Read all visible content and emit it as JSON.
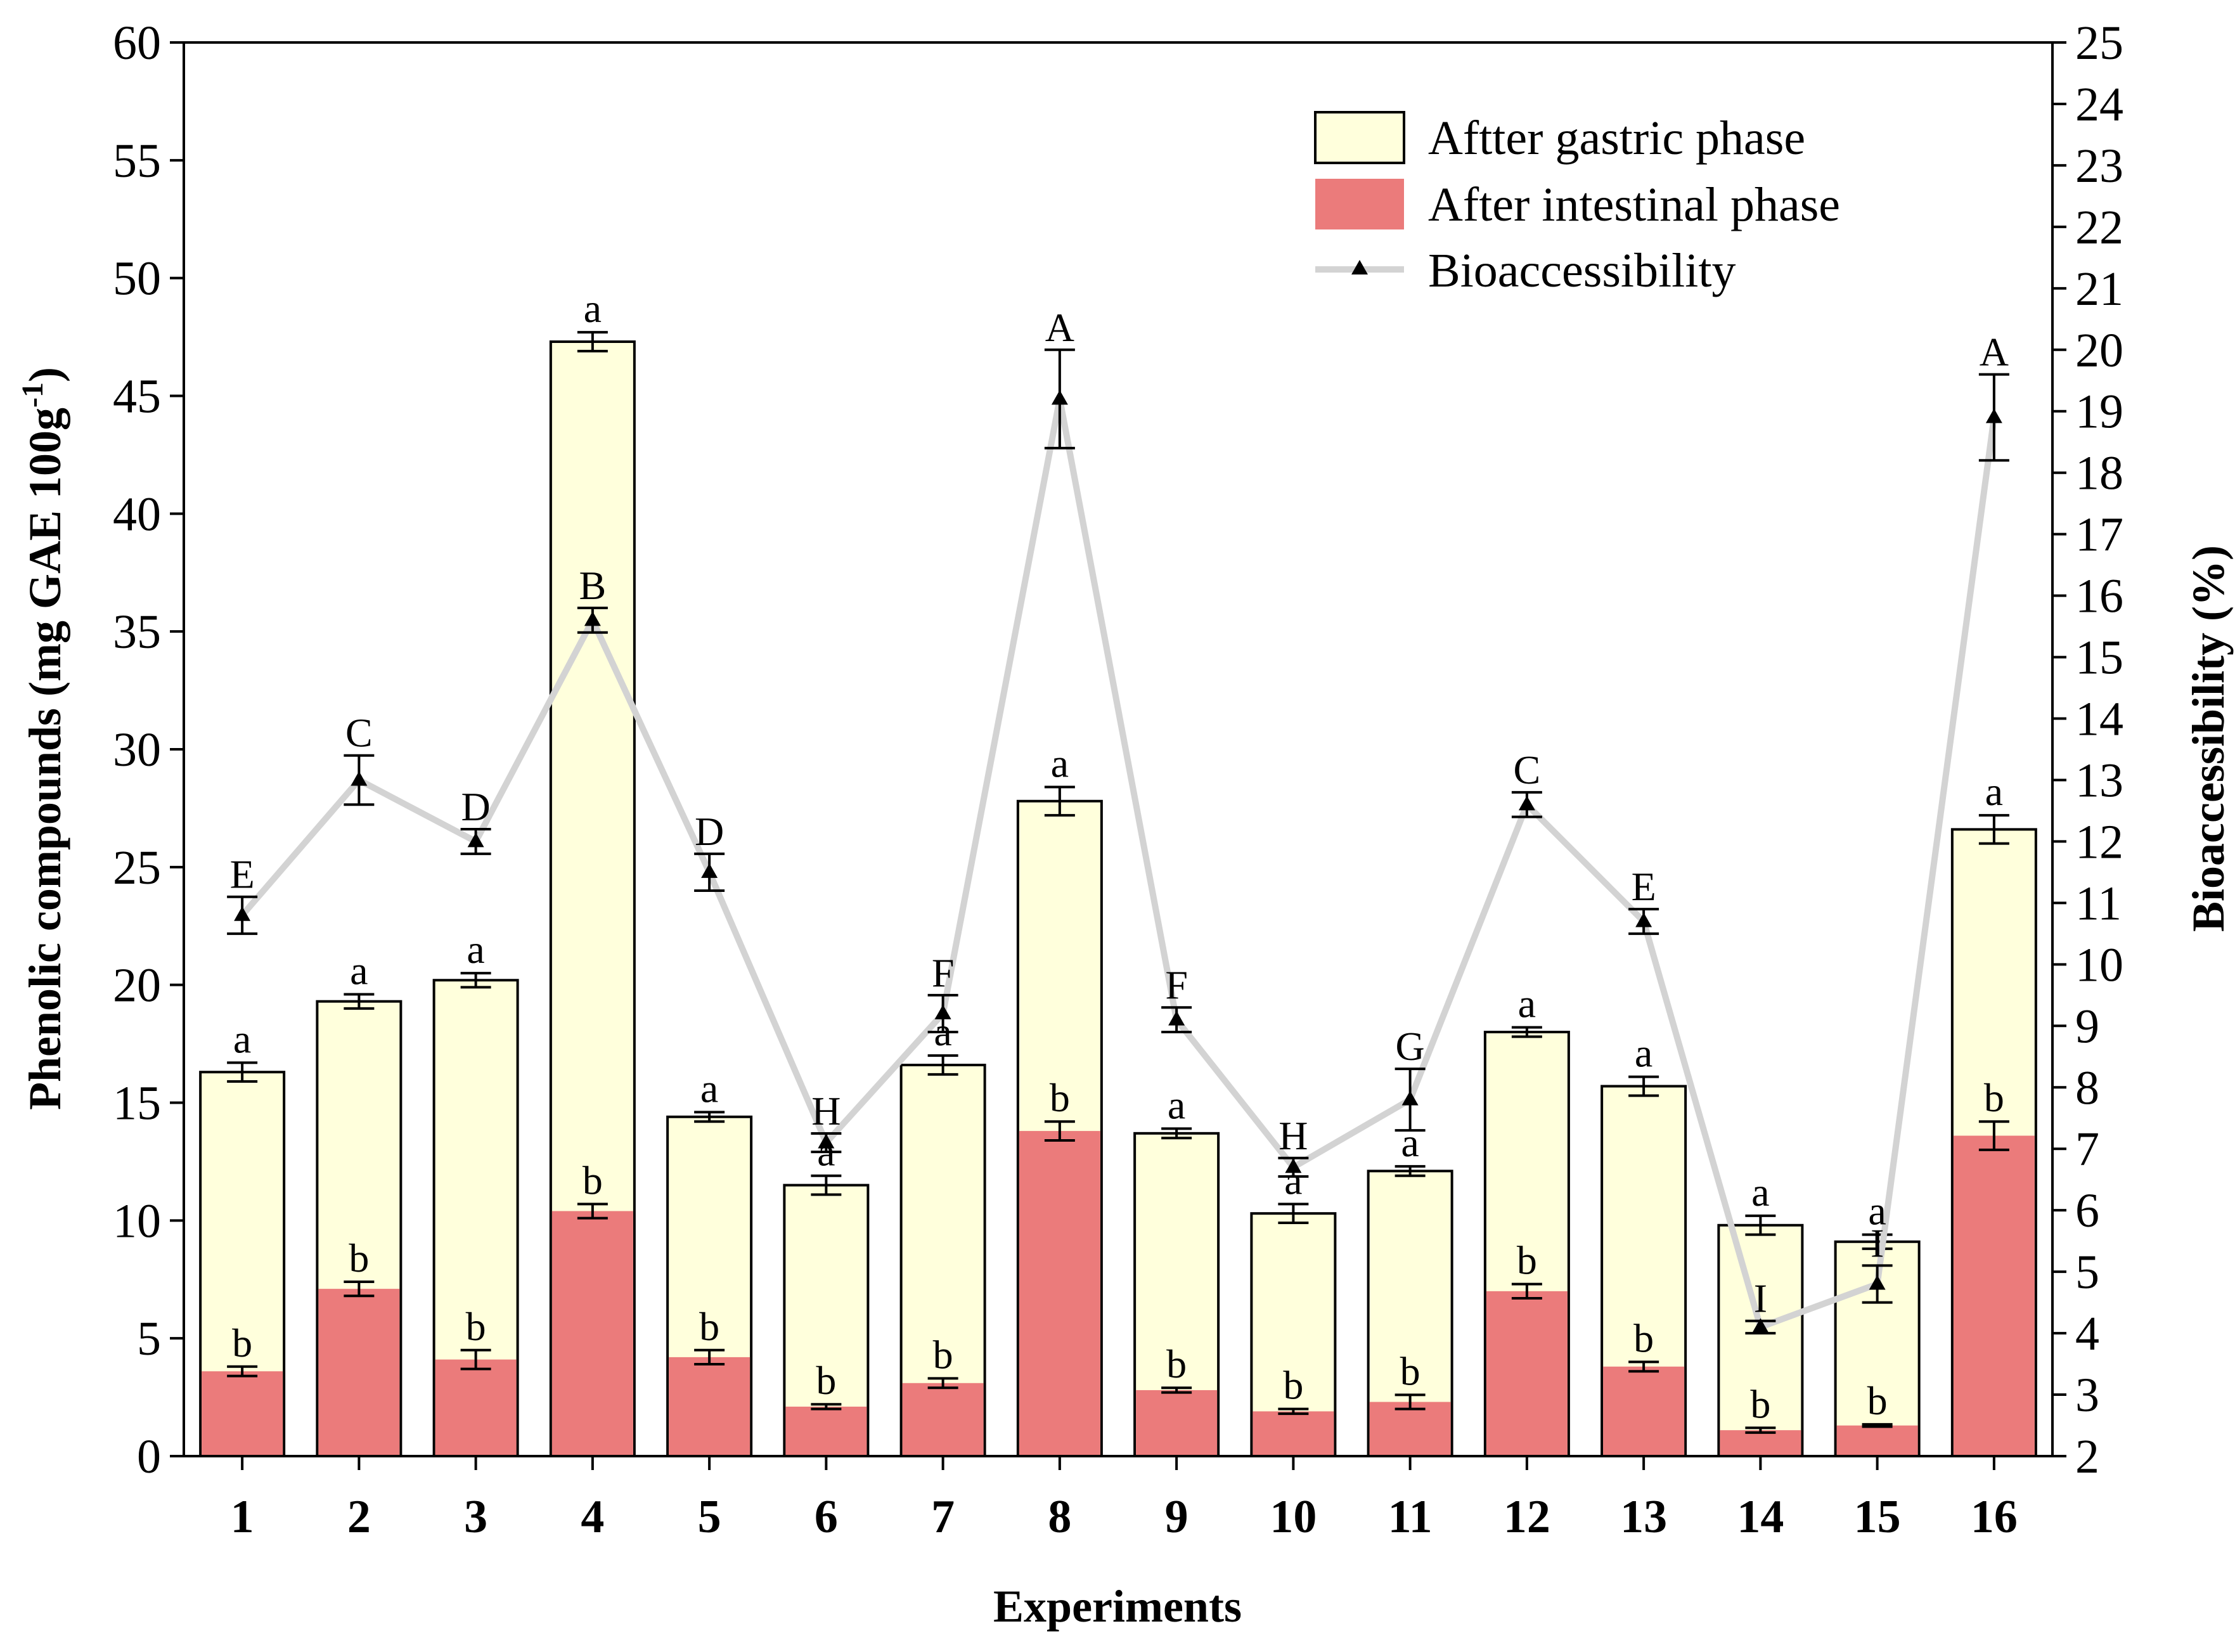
{
  "chart_data": {
    "type": "bar",
    "subtype": "overlapping-bars-with-line",
    "categories": [
      "1",
      "2",
      "3",
      "4",
      "5",
      "6",
      "7",
      "8",
      "9",
      "10",
      "11",
      "12",
      "13",
      "14",
      "15",
      "16"
    ],
    "xlabel": "Experiments",
    "ylabel": "Phenolic compounds  (mg GAE 100g",
    "ylabel_superscript": "-1",
    "ylabel_close": ")",
    "y2label": "Bioaccessibility  (%)",
    "ylim": [
      0,
      60
    ],
    "y_ticks": [
      "0",
      "5",
      "10",
      "15",
      "20",
      "25",
      "30",
      "35",
      "40",
      "45",
      "50",
      "55",
      "60"
    ],
    "y2lim": [
      2,
      25
    ],
    "y2_ticks": [
      "2",
      "3",
      "4",
      "5",
      "6",
      "7",
      "8",
      "9",
      "10",
      "11",
      "12",
      "13",
      "14",
      "15",
      "16",
      "17",
      "18",
      "19",
      "20",
      "21",
      "22",
      "23",
      "24",
      "25"
    ],
    "legend_position": "top-right",
    "series": [
      {
        "name": "Aftter gastric phase",
        "color": "#ffffdc",
        "values": [
          16.3,
          19.3,
          20.2,
          47.3,
          14.4,
          11.5,
          16.6,
          27.8,
          13.7,
          10.3,
          12.1,
          18.0,
          15.7,
          9.8,
          9.1,
          26.6
        ],
        "errors": [
          0.4,
          0.3,
          0.3,
          0.4,
          0.2,
          0.4,
          0.4,
          0.6,
          0.2,
          0.4,
          0.2,
          0.2,
          0.4,
          0.4,
          0.3,
          0.6
        ],
        "labels": [
          "a",
          "a",
          "a",
          "a",
          "a",
          "a",
          "a",
          "a",
          "a",
          "a",
          "a",
          "a",
          "a",
          "a",
          "a",
          "a"
        ]
      },
      {
        "name": "After intestinal phase",
        "color": "#eb7b7b",
        "values": [
          3.6,
          7.1,
          4.1,
          10.4,
          4.2,
          2.1,
          3.1,
          13.8,
          2.8,
          1.9,
          2.3,
          7.0,
          3.8,
          1.1,
          1.3,
          13.6
        ],
        "errors": [
          0.2,
          0.3,
          0.4,
          0.3,
          0.3,
          0.1,
          0.2,
          0.4,
          0.1,
          0.1,
          0.3,
          0.3,
          0.2,
          0.1,
          0.05,
          0.6
        ],
        "labels": [
          "b",
          "b",
          "b",
          "b",
          "b",
          "b",
          "b",
          "b",
          "b",
          "b",
          "b",
          "b",
          "b",
          "b",
          "b",
          "b"
        ]
      },
      {
        "name": "Bioaccessibility",
        "type": "line",
        "axis": "right",
        "color": "#d3d3d3",
        "values": [
          10.8,
          13.0,
          12.0,
          15.6,
          11.5,
          7.1,
          9.2,
          19.2,
          9.1,
          6.7,
          7.8,
          12.6,
          10.7,
          4.1,
          4.8,
          18.9
        ],
        "errors": [
          0.3,
          0.4,
          0.2,
          0.2,
          0.3,
          0.15,
          0.3,
          0.8,
          0.2,
          0.15,
          0.5,
          0.2,
          0.2,
          0.1,
          0.3,
          0.7
        ],
        "labels": [
          "E",
          "C",
          "D",
          "B",
          "D",
          "H",
          "F",
          "A",
          "F",
          "H",
          "G",
          "C",
          "E",
          "I",
          "I",
          "A"
        ]
      }
    ]
  }
}
